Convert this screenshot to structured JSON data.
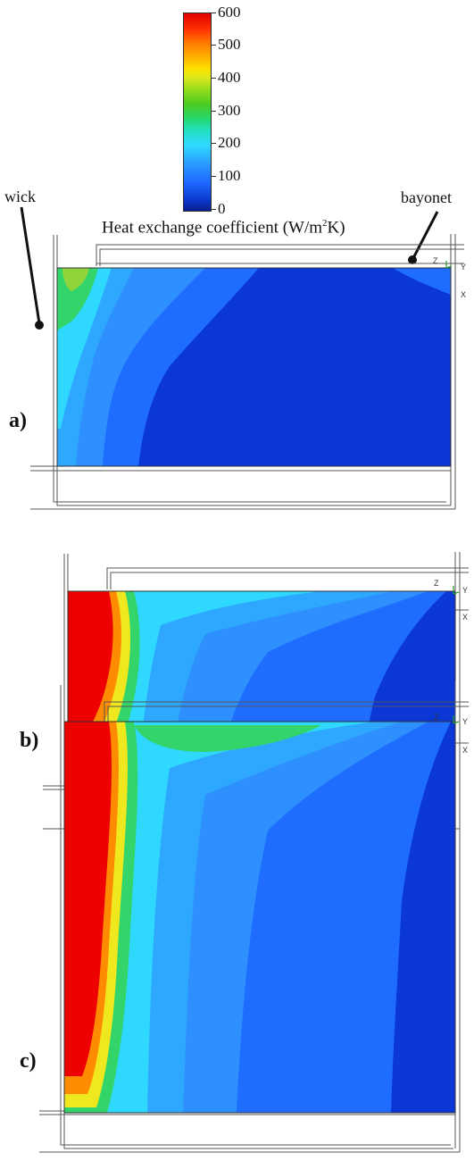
{
  "colorbar": {
    "ticks": [
      "600",
      "500",
      "400",
      "300",
      "200",
      "100",
      "0"
    ],
    "title_prefix": "Heat exchange coefficient (W/m",
    "title_sup": "2",
    "title_suffix": "K)",
    "range": [
      0,
      600
    ]
  },
  "annotations": {
    "wick": "wick",
    "bayonet": "bayonet"
  },
  "panels": [
    {
      "label": "a)"
    },
    {
      "label": "b)"
    },
    {
      "label": "c)"
    }
  ],
  "triad": {
    "z": "Z",
    "y": "Y",
    "x": "X"
  },
  "colors": {
    "blue_dark": "#0a37d6",
    "blue_mid": "#1f6dff",
    "blue_light": "#2ea8ff",
    "cyan": "#2ee0ff",
    "green": "#33d46a",
    "yellow": "#f0e81e",
    "orange": "#ff8c00",
    "red": "#ee0000"
  }
}
